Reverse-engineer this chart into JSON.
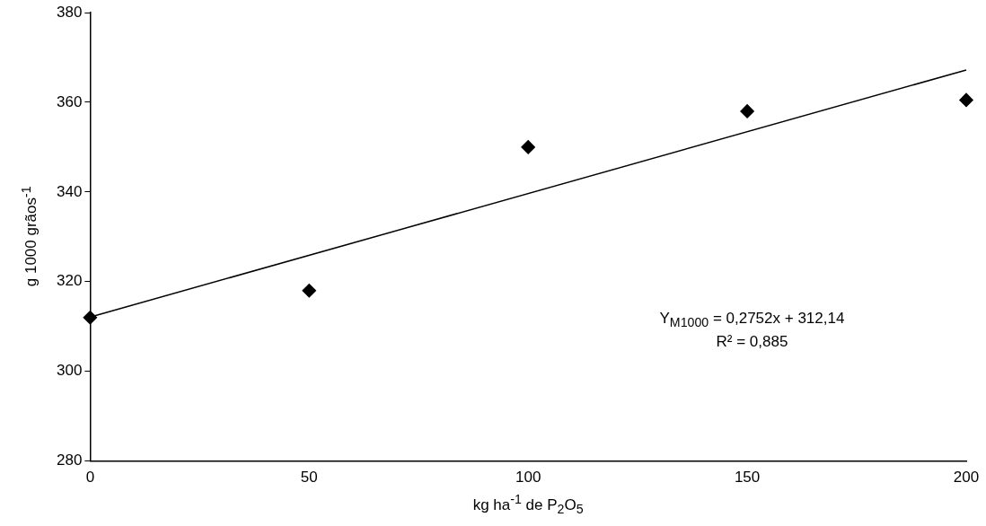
{
  "chart_data": {
    "type": "scatter",
    "xlabel": "kg ha$^{-1}$ de P$_{2}$O$_{5}$",
    "ylabel": "g 1000 grãos$^{-1}$",
    "x": [
      0,
      50,
      100,
      150,
      200
    ],
    "series": [
      {
        "color": "#000000",
        "values": [
          312,
          318,
          350,
          358,
          360.5
        ],
        "marker": "diamond"
      },
      {
        "type": "line",
        "color": "#000000",
        "x": [
          0,
          200
        ],
        "values": [
          312.1,
          367.2
        ],
        "marker": "none",
        "line_style": "solid"
      }
    ],
    "xlim": [
      0,
      200
    ],
    "xticks": [
      0,
      50,
      100,
      150,
      200
    ],
    "ylim": [
      280,
      380
    ],
    "yticks": [
      280,
      300,
      320,
      340,
      360,
      380
    ],
    "grid": false,
    "legend": false,
    "annotations": [
      "Y$_{M1000}$ = 0,2752x + 312,14",
      "R² = 0,885"
    ]
  }
}
